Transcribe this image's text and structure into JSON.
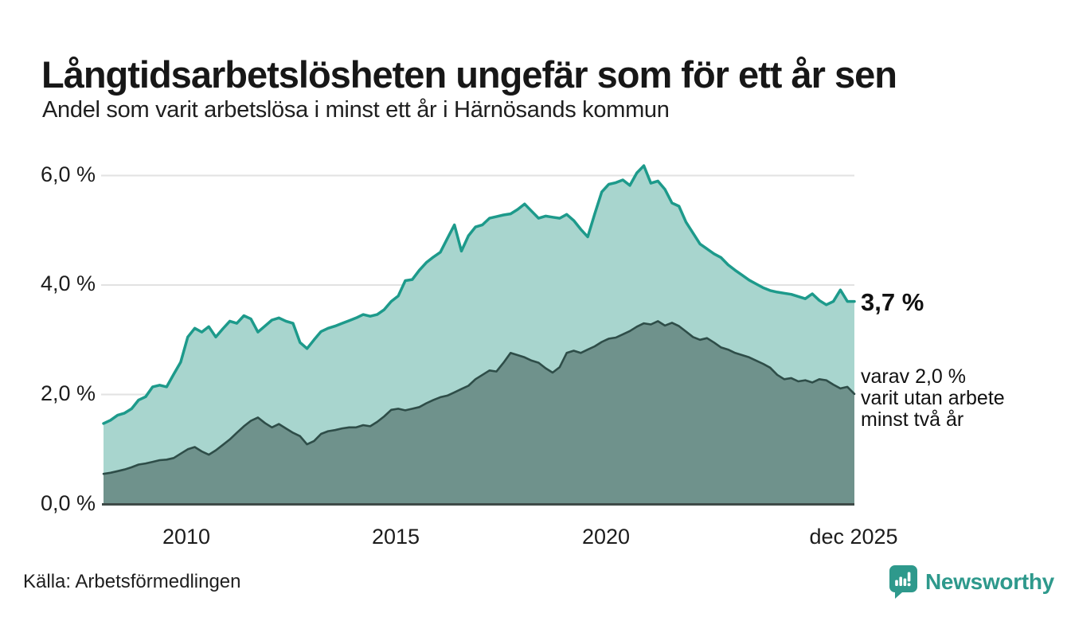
{
  "header": {
    "title": "Långtidsarbetslösheten ungefär som för ett år sen",
    "subtitle": "Andel som varit arbetslösa i minst ett år i Härnösands kommun"
  },
  "chart_data": {
    "type": "area",
    "title": "Långtidsarbetslösheten ungefär som för ett år sen",
    "subtitle": "Andel som varit arbetslösa i minst ett år i Härnösands kommun",
    "unit": "%",
    "x_start_year": 2008,
    "x_end_label": "dec 2025",
    "points_per_year": 6,
    "ylim": [
      0,
      6.2
    ],
    "yticks": [
      0,
      2,
      4,
      6
    ],
    "ytick_labels_top_to_bottom": [
      "6,0 %",
      "4,0 %",
      "2,0 %",
      "0,0 %"
    ],
    "xtick_labels": [
      "2010",
      "2015",
      "2020",
      "dec 2025"
    ],
    "grid": "horizontal",
    "legend_position": "none",
    "series": [
      {
        "name": "Andel som varit arbetslösa i minst ett år",
        "color": "#1d9a8b",
        "fill": "#a8d5ce",
        "stroke_width": 3.5,
        "latest_value": 3.7,
        "values": [
          1.47,
          1.53,
          1.62,
          1.66,
          1.74,
          1.9,
          1.96,
          2.14,
          2.17,
          2.14,
          2.37,
          2.59,
          3.05,
          3.21,
          3.14,
          3.24,
          3.05,
          3.2,
          3.34,
          3.3,
          3.44,
          3.38,
          3.14,
          3.25,
          3.36,
          3.4,
          3.34,
          3.3,
          2.95,
          2.84,
          3.0,
          3.15,
          3.21,
          3.25,
          3.3,
          3.35,
          3.4,
          3.46,
          3.43,
          3.46,
          3.55,
          3.7,
          3.8,
          4.08,
          4.1,
          4.27,
          4.41,
          4.51,
          4.6,
          4.85,
          5.1,
          4.62,
          4.9,
          5.06,
          5.1,
          5.22,
          5.25,
          5.28,
          5.3,
          5.38,
          5.48,
          5.35,
          5.22,
          5.26,
          5.24,
          5.22,
          5.29,
          5.18,
          5.02,
          4.88,
          5.3,
          5.7,
          5.84,
          5.87,
          5.92,
          5.82,
          6.05,
          6.18,
          5.86,
          5.9,
          5.75,
          5.5,
          5.44,
          5.15,
          4.95,
          4.75,
          4.66,
          4.57,
          4.5,
          4.37,
          4.27,
          4.18,
          4.09,
          4.02,
          3.95,
          3.9,
          3.87,
          3.85,
          3.83,
          3.79,
          3.75,
          3.84,
          3.72,
          3.64,
          3.7,
          3.91,
          3.7,
          3.7
        ]
      },
      {
        "name": "varav utan arbete minst två år",
        "color": "#2e4d48",
        "fill": "#6f928c",
        "stroke_width": 2.6,
        "latest_value": 2.0,
        "values": [
          0.55,
          0.57,
          0.6,
          0.63,
          0.67,
          0.72,
          0.74,
          0.77,
          0.8,
          0.81,
          0.84,
          0.92,
          1.0,
          1.04,
          0.96,
          0.9,
          0.98,
          1.08,
          1.18,
          1.3,
          1.42,
          1.52,
          1.58,
          1.48,
          1.4,
          1.46,
          1.38,
          1.3,
          1.24,
          1.09,
          1.15,
          1.28,
          1.33,
          1.35,
          1.38,
          1.4,
          1.4,
          1.44,
          1.42,
          1.5,
          1.6,
          1.72,
          1.74,
          1.71,
          1.74,
          1.77,
          1.84,
          1.9,
          1.95,
          1.98,
          2.04,
          2.1,
          2.16,
          2.28,
          2.36,
          2.44,
          2.42,
          2.58,
          2.76,
          2.72,
          2.68,
          2.62,
          2.58,
          2.48,
          2.4,
          2.5,
          2.76,
          2.8,
          2.76,
          2.82,
          2.88,
          2.96,
          3.02,
          3.04,
          3.1,
          3.16,
          3.24,
          3.3,
          3.28,
          3.34,
          3.26,
          3.31,
          3.25,
          3.15,
          3.05,
          3.0,
          3.03,
          2.95,
          2.86,
          2.82,
          2.76,
          2.72,
          2.68,
          2.62,
          2.56,
          2.49,
          2.36,
          2.28,
          2.3,
          2.24,
          2.26,
          2.22,
          2.28,
          2.26,
          2.18,
          2.11,
          2.14,
          2.01
        ]
      }
    ]
  },
  "annotations": {
    "latest_total": "3,7 %",
    "breakdown_lines": [
      "varav 2,0 %",
      "varit utan arbete",
      "minst två år"
    ]
  },
  "footer": {
    "source": "Källa: Arbetsförmedlingen"
  },
  "brand": {
    "name": "Newsworthy",
    "color": "#2e998c",
    "icon": "newsworthy-chart-bubble-icon"
  }
}
